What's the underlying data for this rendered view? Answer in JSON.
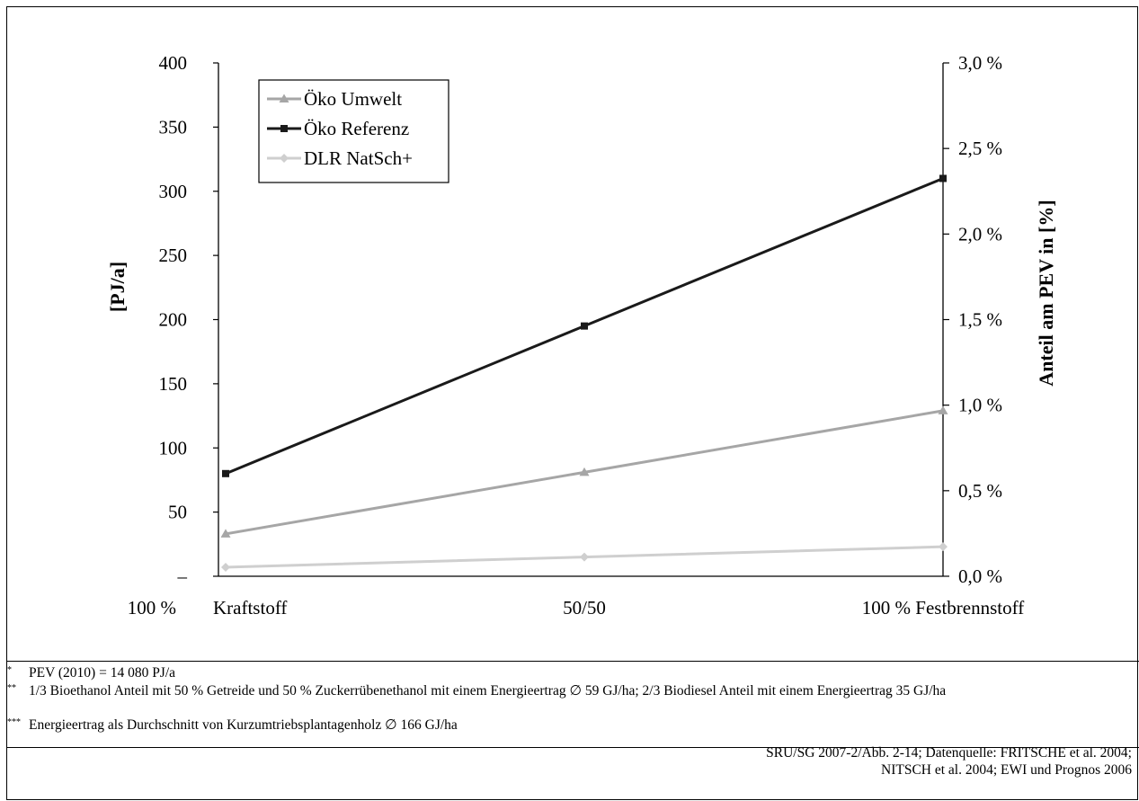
{
  "chart_data": {
    "type": "line",
    "categories": [
      "Kraftstoff",
      "50/50",
      "100 % Festbrennstoff"
    ],
    "x_prefix_label": "100 %",
    "ylabel": "[PJ/a]",
    "ylabel_right": "Anteil am PEV in [%]",
    "ylim": [
      0,
      400
    ],
    "ylim_right": [
      0,
      3.0
    ],
    "yticks": [
      "–",
      "50",
      "100",
      "150",
      "200",
      "250",
      "300",
      "350",
      "400"
    ],
    "yticks_right": [
      "0,0 %",
      "0,5 %",
      "1,0 %",
      "1,5 %",
      "2,0 %",
      "2,5 %",
      "3,0 %"
    ],
    "legend_position": "top-left",
    "series": [
      {
        "name": "Öko Umwelt",
        "values": [
          33,
          81,
          129
        ],
        "color": "#a6a6a6",
        "marker": "triangle"
      },
      {
        "name": "Öko Referenz",
        "values": [
          80,
          195,
          310
        ],
        "color": "#1a1a1a",
        "marker": "square"
      },
      {
        "name": "DLR NatSch+",
        "values": [
          7,
          15,
          23
        ],
        "color": "#cfcfcf",
        "marker": "diamond"
      }
    ]
  },
  "notes": [
    {
      "mark": "*",
      "text": "PEV (2010) = 14 080 PJ/a"
    },
    {
      "mark": "**",
      "text": "1/3 Bioethanol Anteil mit 50 % Getreide und 50 % Zuckerrübenethanol mit einem Energieertrag ∅ 59 GJ/ha; 2/3 Biodiesel Anteil mit einem Energieertrag 35 GJ/ha"
    },
    {
      "mark": "***",
      "text": "Energieertrag als Durchschnitt von Kurzumtriebsplantagenholz ∅ 166 GJ/ha"
    }
  ],
  "source": {
    "line1": "SRU/SG 2007-2/Abb. 2-14; Datenquelle: FRITSCHE et al. 2004;",
    "line2": "NITSCH et al. 2004; EWI und Prognos 2006"
  }
}
